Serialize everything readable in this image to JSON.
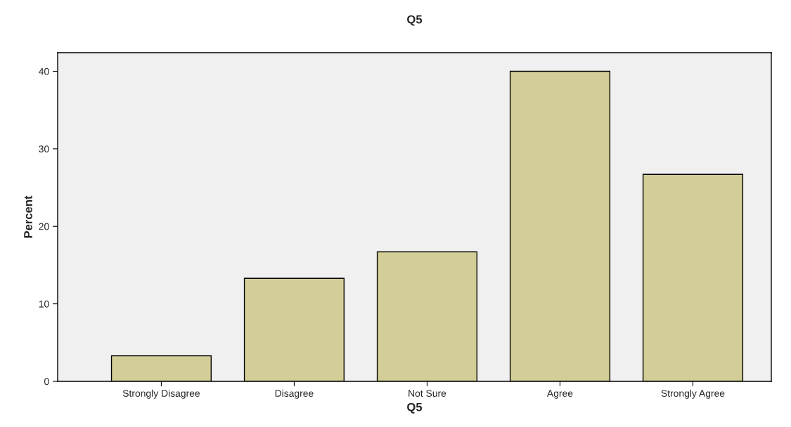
{
  "chart_data": {
    "type": "bar",
    "title": "Q5",
    "xlabel": "Q5",
    "ylabel": "Percent",
    "categories": [
      "Strongly Disagree",
      "Disagree",
      "Not Sure",
      "Agree",
      "Strongly Agree"
    ],
    "values": [
      3.3,
      13.3,
      16.7,
      40,
      26.7
    ],
    "color": "#d3ce97",
    "ylim": [
      0,
      42.4
    ],
    "yticks": [
      0,
      10,
      20,
      30,
      40
    ],
    "grid": false,
    "legend": false
  }
}
